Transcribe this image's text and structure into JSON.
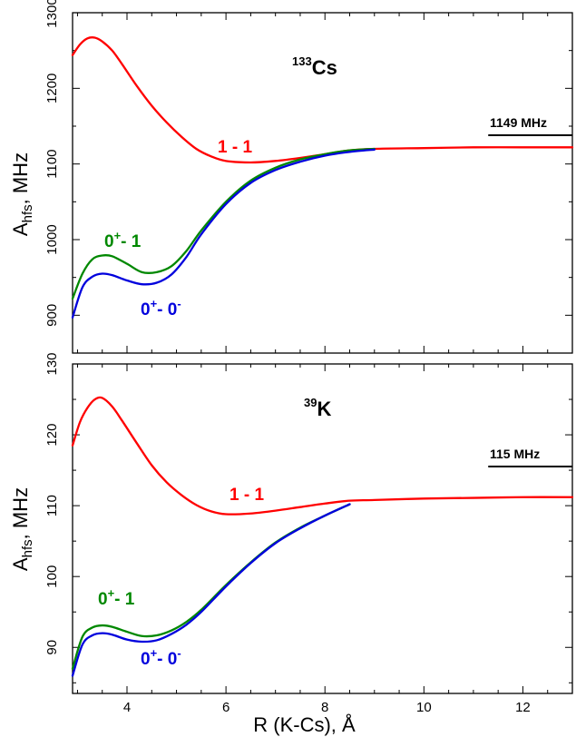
{
  "chart_data": [
    {
      "type": "line",
      "element": {
        "mass": "133",
        "symbol": "Cs"
      },
      "ylabel": {
        "main": "A",
        "sub": "hfs",
        "rest": ", MHz"
      },
      "ylim": [
        850,
        1300
      ],
      "xlim": [
        2.9,
        13
      ],
      "yticks": [
        900,
        1000,
        1100,
        1200,
        1300
      ],
      "reference": {
        "label": "1149 MHz",
        "value": 1149,
        "x_range": [
          11.3,
          13
        ]
      },
      "series": [
        {
          "name": "1 - 1",
          "color": "#ff0000",
          "x": [
            2.9,
            3.05,
            3.2,
            3.35,
            3.5,
            3.7,
            3.9,
            4.2,
            4.5,
            4.8,
            5.1,
            5.4,
            5.7,
            6.0,
            6.5,
            7.0,
            7.5,
            8.0,
            8.5,
            9.0,
            10.0,
            11.0,
            12.0,
            13.0
          ],
          "y": [
            1244,
            1258,
            1266,
            1267,
            1262,
            1250,
            1232,
            1203,
            1177,
            1155,
            1136,
            1120,
            1110,
            1104,
            1102,
            1104,
            1108,
            1113,
            1118,
            1120,
            1121,
            1122,
            1122,
            1122
          ]
        },
        {
          "name": "0+ - 1",
          "label_parts": [
            "0",
            "+",
            "- 1"
          ],
          "color": "#008800",
          "x": [
            2.9,
            3.1,
            3.3,
            3.5,
            3.7,
            4.0,
            4.3,
            4.6,
            4.9,
            5.2,
            5.5,
            6.0,
            6.5,
            7.0,
            7.5,
            8.0,
            8.5,
            9.0
          ],
          "y": [
            922,
            955,
            974,
            979,
            978,
            968,
            957,
            957,
            965,
            985,
            1012,
            1050,
            1078,
            1095,
            1106,
            1113,
            1118,
            1120
          ]
        },
        {
          "name": "0+ - 0-",
          "label_parts": [
            "0",
            "+",
            "- 0",
            "-"
          ],
          "color": "#0000dd",
          "x": [
            2.9,
            3.1,
            3.3,
            3.5,
            3.7,
            4.0,
            4.3,
            4.6,
            4.9,
            5.2,
            5.5,
            6.0,
            6.5,
            7.0,
            7.5,
            8.0,
            8.5,
            9.0
          ],
          "y": [
            897,
            937,
            951,
            955,
            953,
            946,
            941,
            943,
            954,
            977,
            1007,
            1047,
            1075,
            1092,
            1103,
            1111,
            1116,
            1119
          ]
        }
      ]
    },
    {
      "type": "line",
      "element": {
        "mass": "39",
        "symbol": "K"
      },
      "ylabel": {
        "main": "A",
        "sub": "hfs",
        "rest": ", MHz"
      },
      "ylim": [
        83.5,
        130
      ],
      "xlim": [
        2.9,
        13
      ],
      "yticks": [
        90,
        100,
        110,
        120,
        130
      ],
      "xticks": [
        4,
        6,
        8,
        10,
        12
      ],
      "xlabel": "R (K-Cs), Å",
      "reference": {
        "label": "115 MHz",
        "value": 115,
        "x_range": [
          11.3,
          13
        ]
      },
      "series": [
        {
          "name": "1 - 1",
          "color": "#ff0000",
          "x": [
            2.9,
            3.05,
            3.2,
            3.35,
            3.5,
            3.7,
            3.9,
            4.2,
            4.5,
            4.8,
            5.1,
            5.4,
            5.7,
            6.0,
            6.5,
            7.0,
            7.5,
            8.0,
            8.5,
            9.0,
            10.0,
            11.0,
            12.0,
            13.0
          ],
          "y": [
            118.5,
            121.8,
            123.8,
            125.0,
            125.2,
            124.0,
            122.0,
            118.8,
            115.7,
            113.3,
            111.5,
            110.1,
            109.2,
            108.8,
            108.9,
            109.3,
            109.8,
            110.3,
            110.7,
            110.8,
            111.0,
            111.1,
            111.2,
            111.2
          ]
        },
        {
          "name": "0+ - 1",
          "label_parts": [
            "0",
            "+",
            "- 1"
          ],
          "color": "#008800",
          "x": [
            2.9,
            3.1,
            3.3,
            3.5,
            3.7,
            4.0,
            4.3,
            4.6,
            4.9,
            5.2,
            5.5,
            6.0,
            6.5,
            7.0,
            7.5,
            8.0,
            8.5
          ],
          "y": [
            87.0,
            91.5,
            92.8,
            93.1,
            92.9,
            92.2,
            91.6,
            91.7,
            92.4,
            93.6,
            95.3,
            98.8,
            102.0,
            104.8,
            106.9,
            108.6,
            110.2
          ]
        },
        {
          "name": "0+ - 0-",
          "label_parts": [
            "0",
            "+",
            "- 0",
            "-"
          ],
          "color": "#0000dd",
          "x": [
            2.9,
            3.1,
            3.3,
            3.5,
            3.7,
            4.0,
            4.3,
            4.6,
            4.9,
            5.2,
            5.5,
            6.0,
            6.5,
            7.0,
            7.5,
            8.0,
            8.5
          ],
          "y": [
            86.0,
            90.4,
            91.7,
            92.0,
            91.8,
            91.1,
            90.8,
            91.0,
            91.9,
            93.2,
            95.0,
            98.6,
            101.9,
            104.7,
            106.8,
            108.6,
            110.2
          ]
        }
      ]
    }
  ]
}
